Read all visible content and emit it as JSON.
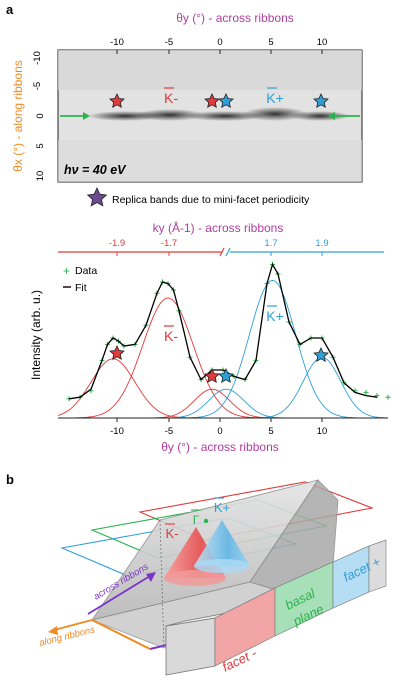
{
  "panel_a": {
    "label": "a",
    "top_axis_title": "θy (°) - across ribbons",
    "left_axis_title": "θx (°) - along ribbons",
    "top_ticks": [
      "-10",
      "-5",
      "0",
      "5",
      "10"
    ],
    "left_ticks": [
      "-10",
      "-5",
      "0",
      "5",
      "10"
    ],
    "hv_label": "hν = 40 eV",
    "k_minus_label": "K-",
    "k_plus_label": "K+",
    "legend_text": "Replica bands due to mini-facet periodicity"
  },
  "panel_spectrum": {
    "top_axis_title": "ky (Å-1) - across ribbons",
    "top_ticks_left": [
      "-1.9",
      "-1.7"
    ],
    "top_ticks_right": [
      "1.7",
      "1.9"
    ],
    "ylabel": "Intensity (arb. u.)",
    "xlabel": "θy (°) - across ribbons",
    "x_ticks": [
      "-10",
      "-5",
      "0",
      "5",
      "10"
    ],
    "legend_data": "Data",
    "legend_fit": "Fit",
    "k_minus_label": "K-",
    "k_plus_label": "K+"
  },
  "panel_b": {
    "label": "b",
    "gamma_label": "Γ",
    "k_minus_label": "K-",
    "k_plus_label": "K+",
    "across_label": "across ribbons",
    "along_label": "along ribbons",
    "facet_minus_label": "facet -",
    "basal_label_1": "basal",
    "basal_label_2": "plane",
    "facet_plus_label": "facet +"
  },
  "colors": {
    "orange": "#f08a24",
    "purple": "#a8328f",
    "red": "#e03a3a",
    "blue": "#2f9fd8",
    "green": "#2bb24c",
    "violet": "#7a35c8"
  },
  "chart_data": {
    "type": "line",
    "x_range": [
      -15,
      15
    ],
    "peaks_deg": [
      -10,
      -5,
      -1,
      0.3,
      4.5,
      9
    ],
    "series": [
      {
        "name": "Data",
        "x": [
          -14,
          -13,
          -12,
          -11,
          -10.5,
          -10,
          -9.5,
          -9,
          -8,
          -7,
          -6,
          -5.5,
          -5,
          -4.5,
          -4,
          -3,
          -2,
          -1,
          0,
          1,
          2,
          3,
          4,
          4.5,
          5,
          6,
          7,
          8,
          9,
          10,
          11,
          12,
          13,
          14,
          15
        ],
        "values": [
          0.12,
          0.13,
          0.17,
          0.36,
          0.46,
          0.5,
          0.48,
          0.45,
          0.46,
          0.58,
          0.78,
          0.85,
          0.84,
          0.8,
          0.67,
          0.38,
          0.24,
          0.3,
          0.3,
          0.26,
          0.24,
          0.36,
          0.84,
          0.96,
          0.9,
          0.6,
          0.46,
          0.5,
          0.5,
          0.38,
          0.22,
          0.17,
          0.16,
          0.14,
          0.13
        ]
      },
      {
        "name": "Fit",
        "x": [
          -14,
          -13,
          -12,
          -11,
          -10.5,
          -10,
          -9.5,
          -9,
          -8,
          -7,
          -6,
          -5.5,
          -5,
          -4.5,
          -4,
          -3,
          -2,
          -1,
          0,
          1,
          2,
          3,
          4,
          4.5,
          5,
          6,
          7,
          8,
          9,
          10,
          11,
          12,
          13,
          14
        ],
        "values": [
          0.12,
          0.13,
          0.18,
          0.36,
          0.46,
          0.5,
          0.48,
          0.45,
          0.46,
          0.58,
          0.78,
          0.85,
          0.84,
          0.8,
          0.67,
          0.38,
          0.24,
          0.3,
          0.3,
          0.26,
          0.24,
          0.36,
          0.84,
          0.96,
          0.9,
          0.6,
          0.46,
          0.5,
          0.5,
          0.38,
          0.22,
          0.16,
          0.14,
          0.13
        ]
      }
    ]
  }
}
